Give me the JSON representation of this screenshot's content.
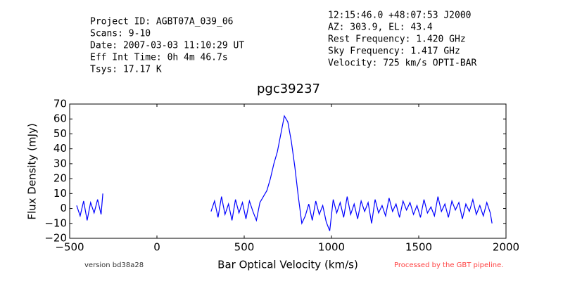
{
  "chart_data": {
    "type": "line",
    "title": "pgc39237",
    "x_label": "Bar Optical Velocity (km/s)",
    "y_label": "Flux Density (mJy)",
    "info_left": [
      "Project ID: AGBT07A_039_06",
      "Scans: 9-10",
      "Date: 2007-03-03 11:10:29 UT",
      "Eff Int Time: 0h 4m 46.7s",
      "Tsys: 17.17 K"
    ],
    "info_right": [
      "12:15:46.0 +48:07:53 J2000",
      "AZ: 303.9, EL: 43.4",
      "Rest Frequency:   1.420 GHz",
      "Sky Frequency:    1.417 GHz",
      "Velocity: 725 km/s OPTI-BAR"
    ],
    "version_note": "version bd38a28",
    "pipeline_note": "Processed by the GBT pipeline.",
    "xlim": [
      -500,
      2000
    ],
    "ylim": [
      -20,
      70
    ],
    "xticks": [
      {
        "value": -500,
        "label": "−500"
      },
      0,
      500,
      1000,
      1500,
      2000
    ],
    "yticks": [
      {
        "value": -20,
        "label": "−20"
      },
      {
        "value": -10,
        "label": "−10"
      },
      0,
      10,
      20,
      30,
      40,
      50,
      60,
      70
    ],
    "color": "#0000ff",
    "x": [
      -460,
      -440,
      -420,
      -400,
      -380,
      -360,
      -340,
      -320,
      -310,
      0,
      310,
      330,
      350,
      370,
      390,
      410,
      430,
      450,
      470,
      490,
      510,
      530,
      550,
      570,
      590,
      610,
      630,
      650,
      670,
      690,
      710,
      730,
      750,
      770,
      790,
      810,
      830,
      850,
      870,
      890,
      910,
      930,
      950,
      970,
      990,
      1010,
      1030,
      1050,
      1070,
      1090,
      1110,
      1130,
      1150,
      1170,
      1190,
      1210,
      1230,
      1250,
      1270,
      1290,
      1310,
      1330,
      1350,
      1370,
      1390,
      1410,
      1430,
      1450,
      1470,
      1490,
      1510,
      1530,
      1550,
      1570,
      1590,
      1610,
      1630,
      1650,
      1670,
      1690,
      1710,
      1730,
      1750,
      1770,
      1790,
      1810,
      1830,
      1850,
      1870,
      1890,
      1910,
      1920
    ],
    "values": [
      2,
      -5,
      5,
      -8,
      4,
      -3,
      6,
      -4,
      10,
      null,
      -2,
      5,
      -6,
      8,
      -4,
      3,
      -8,
      6,
      -3,
      4,
      -7,
      5,
      -2,
      -8,
      4,
      8,
      12,
      20,
      30,
      38,
      50,
      62,
      58,
      45,
      28,
      8,
      -10,
      -5,
      3,
      -8,
      5,
      -4,
      2,
      -9,
      -15,
      6,
      -3,
      4,
      -6,
      8,
      -4,
      3,
      -7,
      5,
      -2,
      4,
      -10,
      6,
      -3,
      2,
      -5,
      7,
      -2,
      3,
      -6,
      5,
      -1,
      4,
      -4,
      2,
      -6,
      6,
      -3,
      1,
      -5,
      8,
      -2,
      3,
      -6,
      5,
      -1,
      4,
      -7,
      3,
      -2,
      6,
      -4,
      2,
      -5,
      4,
      -3,
      -10
    ]
  }
}
